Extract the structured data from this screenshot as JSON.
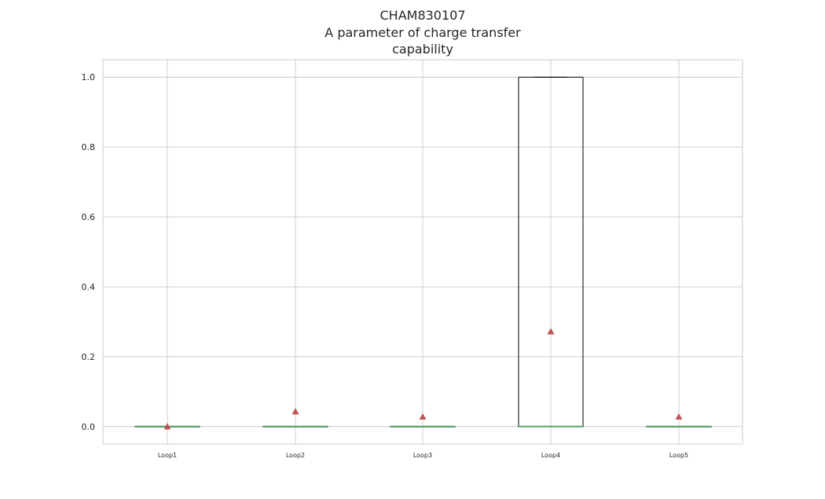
{
  "chart_data": {
    "type": "box",
    "title_lines": [
      "CHAM830107",
      "A parameter of charge transfer",
      "capability"
    ],
    "categories": [
      "Loop1",
      "Loop2",
      "Loop3",
      "Loop4",
      "Loop5"
    ],
    "ylim": [
      -0.05,
      1.05
    ],
    "yticks": [
      "0.0",
      "0.2",
      "0.4",
      "0.6",
      "0.8",
      "1.0"
    ],
    "grid": true,
    "boxes": [
      {
        "name": "Loop1",
        "q1": 0.0,
        "median": 0.0,
        "q3": 0.0,
        "whisker_low": 0.0,
        "whisker_high": 0.0,
        "mean": 0.0
      },
      {
        "name": "Loop2",
        "q1": 0.0,
        "median": 0.0,
        "q3": 0.0,
        "whisker_low": 0.0,
        "whisker_high": 0.0,
        "mean": 0.043
      },
      {
        "name": "Loop3",
        "q1": 0.0,
        "median": 0.0,
        "q3": 0.0,
        "whisker_low": 0.0,
        "whisker_high": 0.0,
        "mean": 0.028
      },
      {
        "name": "Loop4",
        "q1": 0.0,
        "median": 0.0,
        "q3": 1.0,
        "whisker_low": 0.0,
        "whisker_high": 1.0,
        "mean": 0.272
      },
      {
        "name": "Loop5",
        "q1": 0.0,
        "median": 0.0,
        "q3": 0.0,
        "whisker_low": 0.0,
        "whisker_high": 0.0,
        "mean": 0.028
      }
    ],
    "colors": {
      "box": "#000000",
      "median": "#55a868",
      "mean_marker": "#c44e52",
      "grid": "#cccccc",
      "frame": "#cccccc"
    }
  }
}
